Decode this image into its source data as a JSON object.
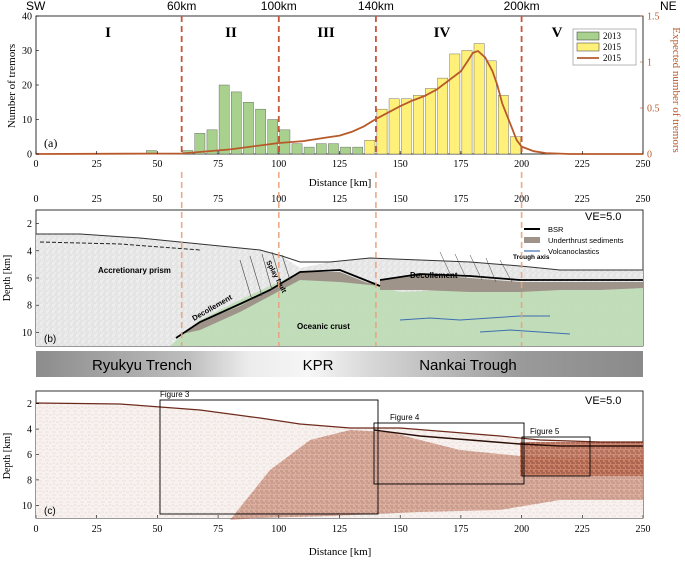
{
  "header": {
    "left": "SW",
    "right": "NE",
    "km_marks": [
      {
        "label": "60km",
        "x": 60
      },
      {
        "label": "100km",
        "x": 100
      },
      {
        "label": "140km",
        "x": 140
      },
      {
        "label": "200km",
        "x": 200
      }
    ]
  },
  "panel_a": {
    "label": "(a)",
    "zones": [
      "I",
      "II",
      "III",
      "IV",
      "V"
    ],
    "ylabel_left": "Number of tremors",
    "ylabel_right": "Expected number of tremors",
    "xlabel": "Distance [km]",
    "x_ticks": [
      "0",
      "25",
      "50",
      "75",
      "100",
      "125",
      "150",
      "175",
      "200",
      "225",
      "250"
    ],
    "y_ticks": [
      "0",
      "10",
      "20",
      "30",
      "40"
    ],
    "y2_ticks": [
      "0",
      "0.5",
      "1",
      "1.5"
    ],
    "legend": [
      "2013",
      "2015",
      "2015"
    ],
    "colors": {
      "bar2013": "#a9d18e",
      "bar2015": "#fff07a",
      "curve": "#b8592a",
      "dashed": "#c8563a"
    }
  },
  "chart_data": {
    "type": "bar",
    "xlabel": "Distance [km]",
    "ylabel": "Number of tremors",
    "xlim": [
      0,
      250
    ],
    "ylim": [
      0,
      40
    ],
    "y2lim": [
      0,
      1.5
    ],
    "bin_width": 5,
    "series": [
      {
        "name": "2013",
        "type": "bar",
        "x": [
          47.5,
          57.5,
          62.5,
          67.5,
          72.5,
          77.5,
          82.5,
          87.5,
          92.5,
          97.5,
          102.5,
          107.5,
          112.5,
          117.5,
          122.5,
          127.5,
          132.5
        ],
        "values": [
          1,
          0,
          1,
          6,
          7,
          20,
          18,
          15,
          13,
          10,
          7,
          3,
          2,
          3,
          3,
          2,
          2
        ]
      },
      {
        "name": "2015",
        "type": "bar",
        "x": [
          137.5,
          142.5,
          147.5,
          152.5,
          157.5,
          162.5,
          167.5,
          172.5,
          177.5,
          182.5,
          187.5,
          192.5,
          197.5
        ],
        "values": [
          4,
          13,
          16,
          16,
          17,
          19,
          22,
          29,
          30,
          32,
          27,
          17,
          5
        ]
      },
      {
        "name": "2015",
        "type": "line",
        "axis": "right",
        "x": [
          0,
          60,
          80,
          100,
          110,
          120,
          125,
          130,
          135,
          140,
          145,
          150,
          155,
          160,
          165,
          170,
          175,
          178,
          180,
          182,
          185,
          188,
          190,
          192,
          195,
          198,
          200,
          205,
          210,
          220,
          250
        ],
        "values": [
          0,
          0.005,
          0.05,
          0.12,
          0.14,
          0.18,
          0.2,
          0.24,
          0.3,
          0.38,
          0.45,
          0.52,
          0.58,
          0.63,
          0.7,
          0.8,
          0.9,
          1.02,
          1.1,
          1.12,
          1.05,
          0.9,
          0.75,
          0.55,
          0.35,
          0.15,
          0.08,
          0.03,
          0.01,
          0,
          0
        ]
      }
    ]
  },
  "panel_b": {
    "label": "(b)",
    "ve": "VE=5.0",
    "ylabel": "Depth [km]",
    "y_ticks": [
      "2",
      "4",
      "6",
      "8",
      "10"
    ],
    "x_ticks": [
      "0",
      "25",
      "50",
      "75",
      "100",
      "125",
      "150",
      "175",
      "200",
      "225",
      "250"
    ],
    "legend": [
      "BSR",
      "Underthrust sediments",
      "Volcanoclastics"
    ],
    "labels": {
      "accretionary_prism": "Accretionary prism",
      "splay_fault": "Splay fault",
      "decollement_left": "Decollement",
      "decollement_right": "Decollement",
      "oceanic_crust": "Oceanic crust",
      "trough_axis": "Trough axis"
    }
  },
  "region_band": {
    "left": "Ryukyu Trench",
    "center": "KPR",
    "right": "Nankai Trough"
  },
  "panel_c": {
    "label": "(c)",
    "ve": "VE=5.0",
    "ylabel": "Depth [km]",
    "xlabel": "Distance [km]",
    "y_ticks": [
      "2",
      "4",
      "6",
      "8",
      "10"
    ],
    "x_ticks": [
      "0",
      "25",
      "50",
      "75",
      "100",
      "125",
      "150",
      "175",
      "200",
      "225",
      "250"
    ],
    "figure_boxes": [
      "Figure 3",
      "Figure 4",
      "Figure 5"
    ]
  }
}
